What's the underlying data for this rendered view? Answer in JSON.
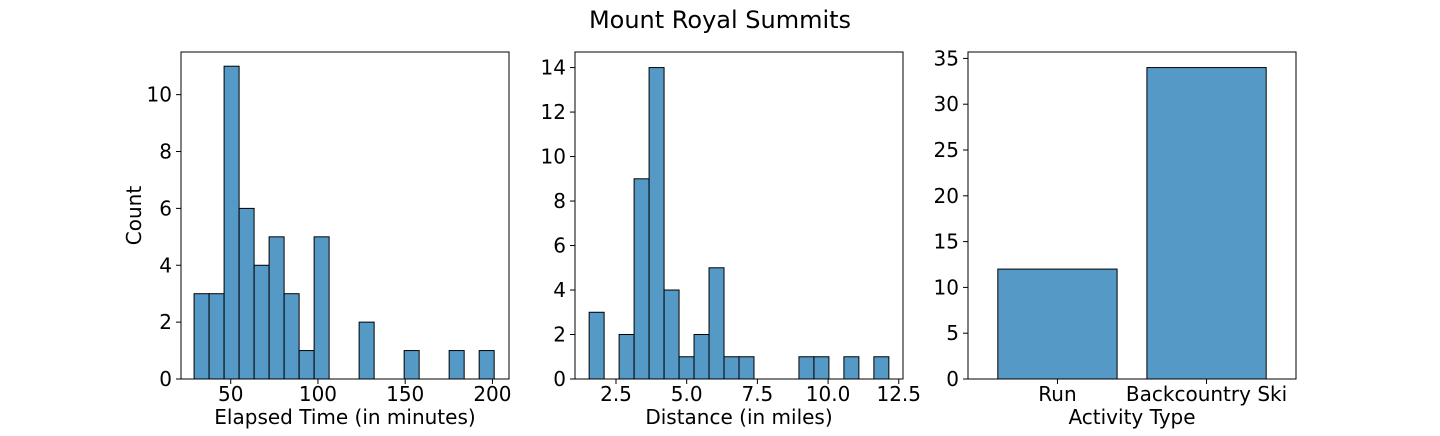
{
  "figure": {
    "title": "Mount Royal Summits",
    "bar_color": "#5599c7",
    "edge_color": "#000000"
  },
  "chart_data": [
    {
      "type": "bar",
      "kind": "histogram",
      "xlabel": "Elapsed Time (in minutes)",
      "ylabel": "Count",
      "xlim": [
        21.5,
        209.5
      ],
      "ylim": [
        0,
        11.5
      ],
      "xticks": [
        50,
        100,
        150,
        200
      ],
      "yticks": [
        0,
        2,
        4,
        6,
        8,
        10
      ],
      "bin_edges": [
        29,
        37.6,
        46.2,
        54.8,
        63.4,
        72,
        80.6,
        89.2,
        97.8,
        106.4,
        115,
        123.6,
        132.2,
        140.8,
        149.4,
        158,
        166.6,
        175.2,
        183.8,
        192.4,
        201
      ],
      "counts": [
        3,
        3,
        11,
        6,
        4,
        5,
        3,
        1,
        5,
        0,
        0,
        2,
        0,
        0,
        1,
        0,
        0,
        1,
        0,
        1
      ],
      "grid": false
    },
    {
      "type": "bar",
      "kind": "histogram",
      "xlabel": "Distance (in miles)",
      "ylabel": "",
      "xlim": [
        1.05,
        12.65
      ],
      "ylim": [
        0,
        14.7
      ],
      "xticks": [
        2.5,
        5.0,
        7.5,
        10.0,
        12.5
      ],
      "xtick_labels": [
        "2.5",
        "5.0",
        "7.5",
        "10.0",
        "12.5"
      ],
      "yticks": [
        0,
        2,
        4,
        6,
        8,
        10,
        12,
        14
      ],
      "bin_edges": [
        1.55,
        2.08,
        2.61,
        3.14,
        3.67,
        4.2,
        4.73,
        5.26,
        5.79,
        6.32,
        6.85,
        7.38,
        7.91,
        8.44,
        8.97,
        9.5,
        10.03,
        10.56,
        11.09,
        11.62,
        12.15
      ],
      "counts": [
        3,
        0,
        2,
        9,
        14,
        4,
        1,
        2,
        5,
        1,
        1,
        0,
        0,
        0,
        1,
        1,
        0,
        1,
        0,
        1
      ],
      "grid": false
    },
    {
      "type": "bar",
      "xlabel": "Activity Type",
      "ylabel": "",
      "categories": [
        "Run",
        "Backcountry Ski"
      ],
      "values": [
        12,
        34
      ],
      "ylim": [
        0,
        35.7
      ],
      "yticks": [
        0,
        5,
        10,
        15,
        20,
        25,
        30,
        35
      ],
      "grid": false
    }
  ]
}
